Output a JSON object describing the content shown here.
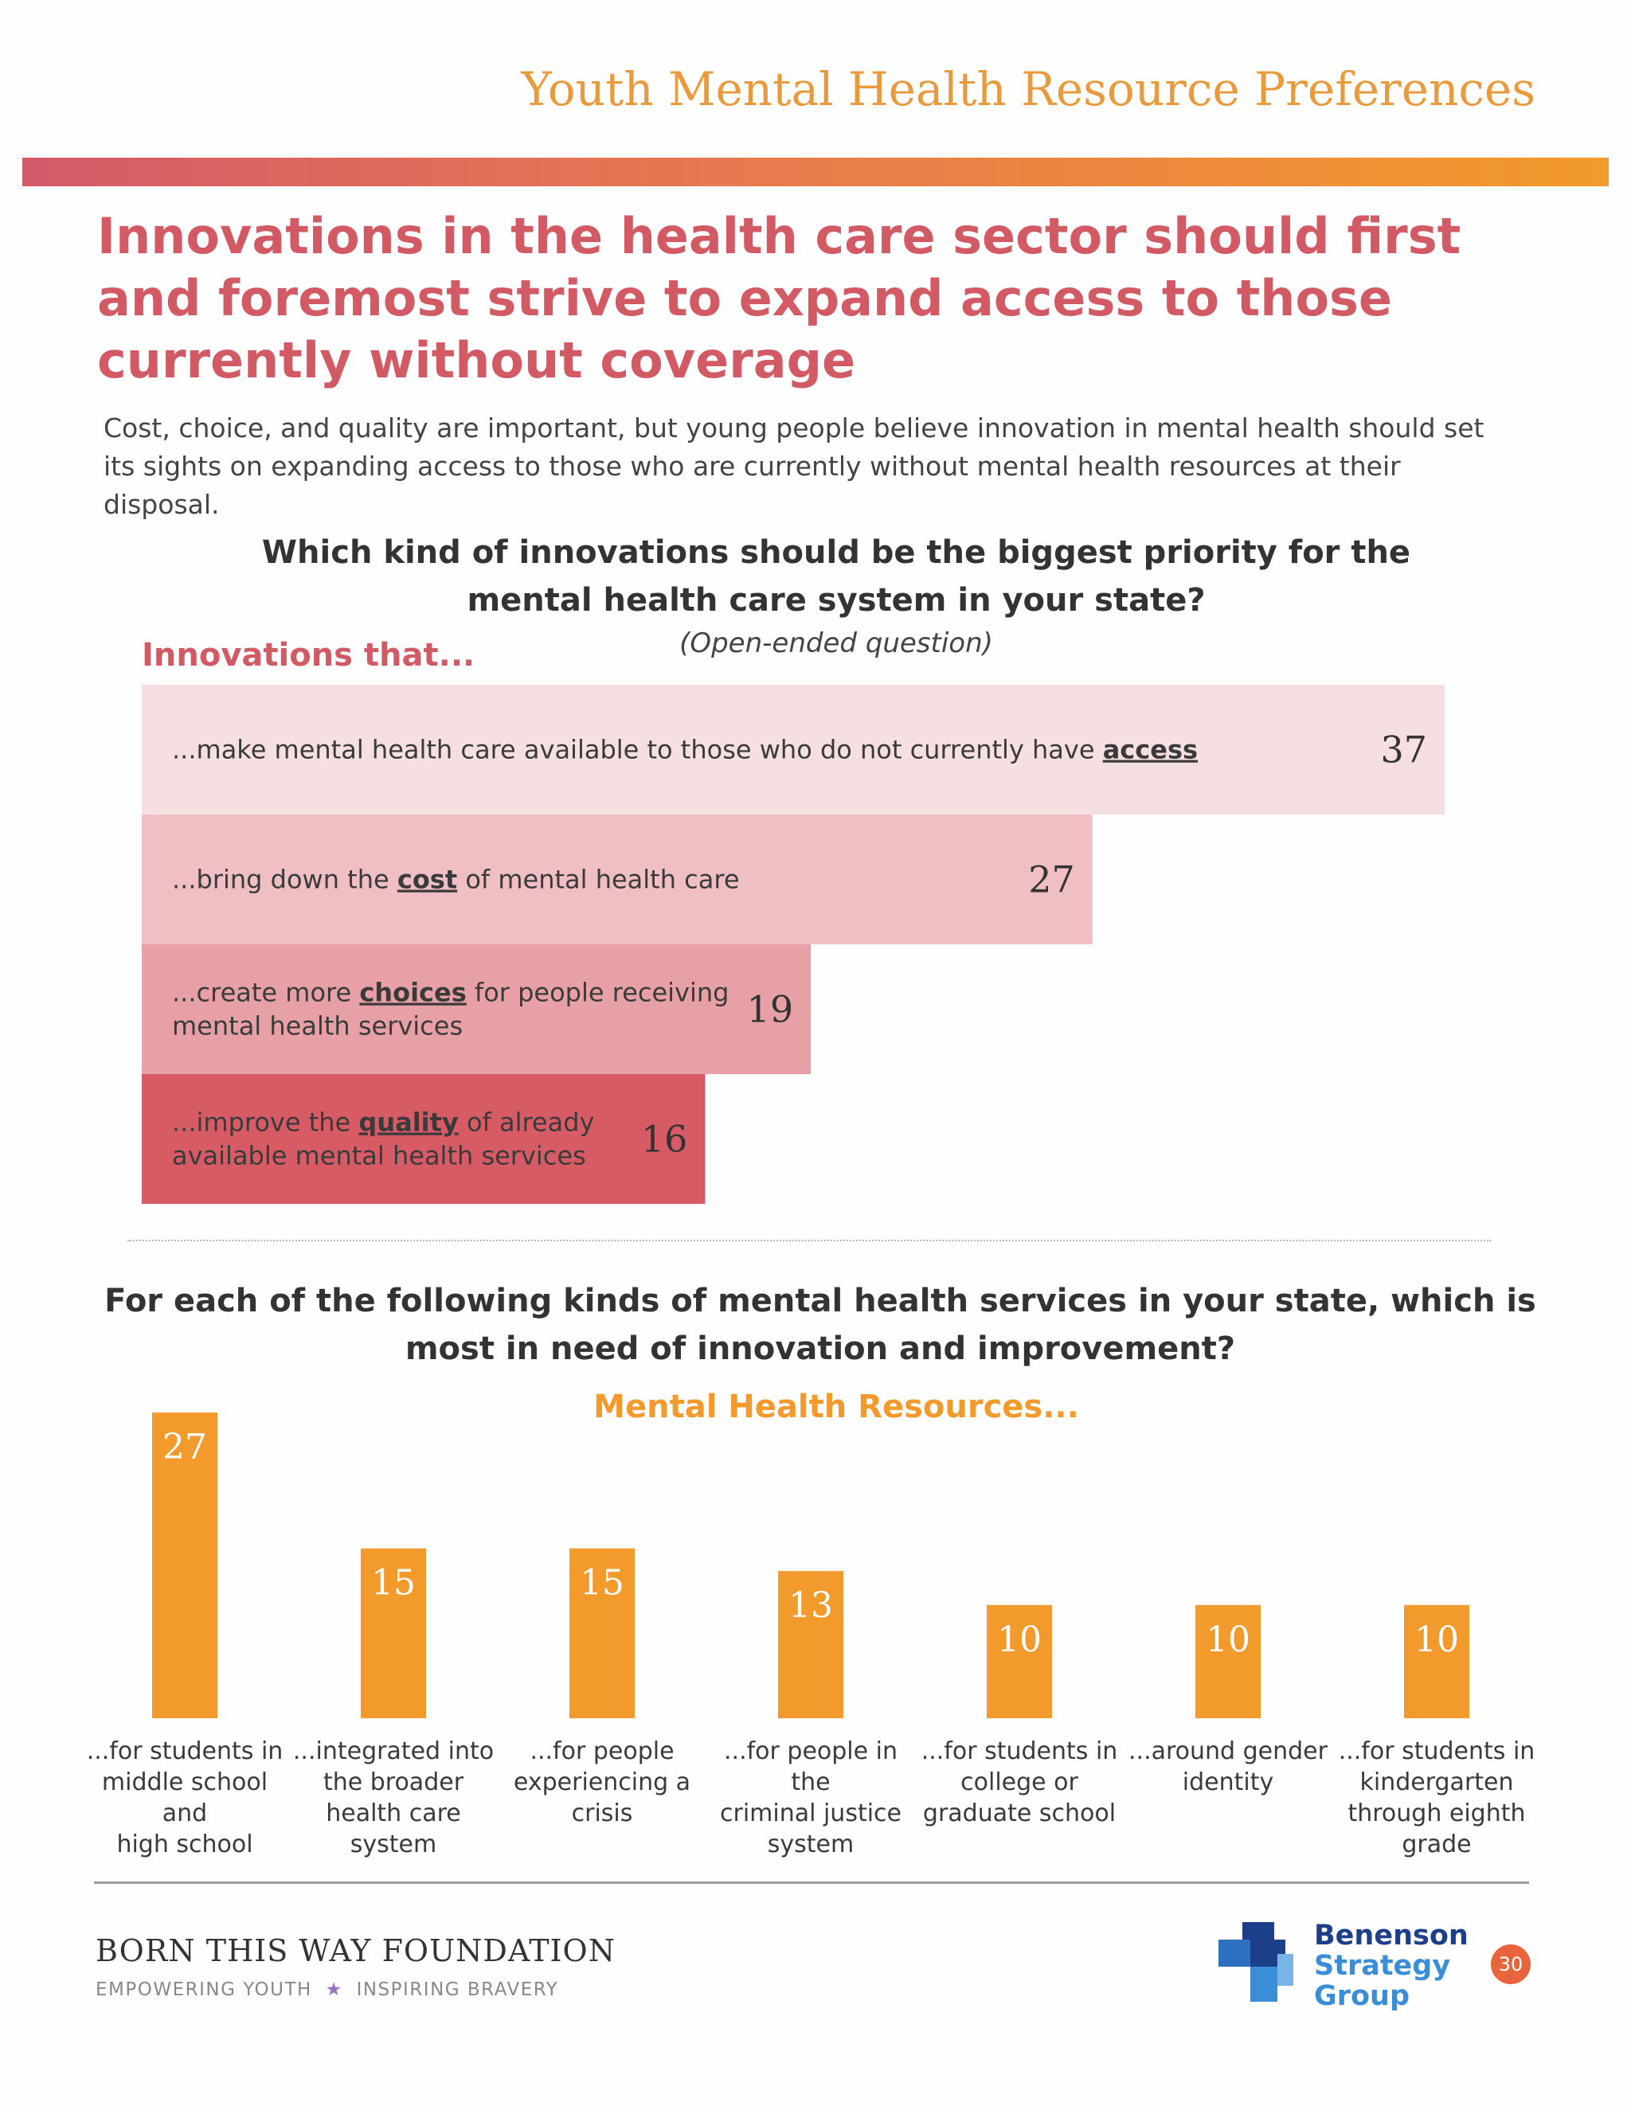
{
  "header": {
    "doc_title": "Youth Mental Health Resource Preferences"
  },
  "headline": "Innovations in the health care sector should first and foremost strive to expand access to those currently without coverage",
  "intro": "Cost, choice, and quality are important, but young people believe innovation in mental health should set its sights on expanding access to those who are currently without mental health resources at their disposal.",
  "chart1": {
    "question": "Which kind of innovations should be the biggest priority for the mental health care system in your state?",
    "note": "(Open-ended question)",
    "group_label": "Innovations that..."
  },
  "chart2": {
    "question": "For each of the following kinds of mental health services in your state, which is most in need of innovation and improvement?",
    "group_label": "Mental Health Resources..."
  },
  "chart_data": [
    {
      "type": "bar",
      "orientation": "horizontal",
      "categories": [
        "...make mental health care available to those who do not currently have access",
        "...bring down the cost of mental health care",
        "...create more choices for people receiving mental health services",
        "...improve the quality of already available mental health services"
      ],
      "category_parts": [
        {
          "pre": "...make mental health care available to those who do not currently have ",
          "key": "access",
          "post": ""
        },
        {
          "pre": "...bring down the ",
          "key": "cost",
          "post": " of mental health care"
        },
        {
          "pre": "...create more ",
          "key": "choices",
          "post": " for people receiving",
          "line2": "mental health services"
        },
        {
          "pre": "...improve the ",
          "key": "quality",
          "post": " of already",
          "line2": "available mental health services"
        }
      ],
      "values": [
        37,
        27,
        19,
        16
      ],
      "colors": [
        "#f6dfe1",
        "#efbfc3",
        "#e6a0a6",
        "#d65b64"
      ],
      "title": "Which kind of innovations should be the biggest priority for the mental health care system in your state?",
      "legend_label": "Innovations that...",
      "grid": false
    },
    {
      "type": "bar",
      "orientation": "vertical",
      "categories": [
        "...for students in middle school and high school",
        "...integrated into the broader health care system",
        "...for people experiencing a crisis",
        "...for people in the criminal justice system",
        "...for students in college or graduate school",
        "...around gender identity",
        "...for students in kindergarten through eighth grade"
      ],
      "category_lines": [
        [
          "...for students in",
          "middle school and",
          "high school"
        ],
        [
          "...integrated into",
          "the broader",
          "health care",
          "system"
        ],
        [
          "...for people",
          "experiencing a",
          "crisis"
        ],
        [
          "...for people in the",
          "criminal justice",
          "system"
        ],
        [
          "...for students in",
          "college or",
          "graduate school"
        ],
        [
          "...around gender",
          "identity"
        ],
        [
          "...for students in",
          "kindergarten",
          "through eighth",
          "grade"
        ]
      ],
      "values": [
        27,
        15,
        15,
        13,
        10,
        10,
        10
      ],
      "color": "#f29a2b",
      "title": "For each of the following kinds of mental health services in your state, which is most in need of innovation and improvement?",
      "legend_label": "Mental Health Resources...",
      "grid": false
    }
  ],
  "footer": {
    "foundation_name": "BORN THIS WAY FOUNDATION",
    "tagline_left": "EMPOWERING YOUTH",
    "tagline_star": "★",
    "tagline_right": "INSPIRING BRAVERY",
    "partner_line1": "Benenson",
    "partner_line2": "Strategy",
    "partner_line3": "Group",
    "page_number": "30",
    "colors": {
      "partner_dark": "#1d3f8a",
      "partner_light": "#3a8ed8",
      "star": "#9b6fc4"
    }
  }
}
